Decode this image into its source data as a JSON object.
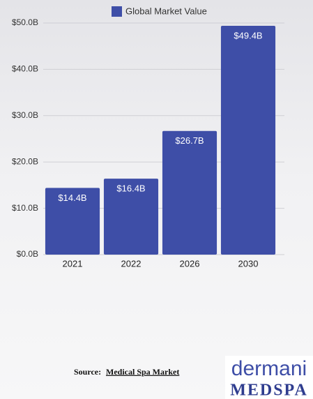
{
  "chart_data": {
    "type": "bar",
    "legend": "Global Market Value",
    "categories": [
      "2021",
      "2022",
      "2026",
      "2030"
    ],
    "values": [
      14.4,
      16.4,
      26.7,
      49.4
    ],
    "value_labels": [
      "$14.4B",
      "$16.4B",
      "$26.7B",
      "$49.4B"
    ],
    "color": "#3e4ea7",
    "ylim": [
      0,
      50
    ],
    "yticks": [
      {
        "value": 0,
        "label": "$0.0B"
      },
      {
        "value": 10,
        "label": "$10.0B"
      },
      {
        "value": 20,
        "label": "$20.0B"
      },
      {
        "value": 30,
        "label": "$30.0B"
      },
      {
        "value": 40,
        "label": "$40.0B"
      },
      {
        "value": 50,
        "label": "$50.0B"
      }
    ],
    "grid": true,
    "source": {
      "label": "Source:",
      "text": "Medical Spa Market"
    },
    "logo": {
      "line1": "dermani",
      "line2": "MEDSPA"
    }
  }
}
